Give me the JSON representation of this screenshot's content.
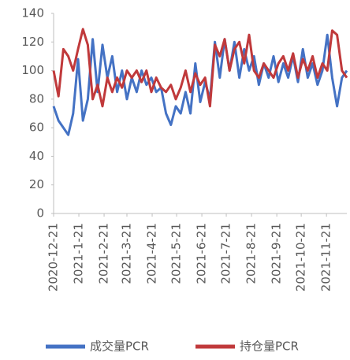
{
  "chart_data": {
    "type": "line",
    "x": [
      "2020-12-21",
      "2020-12-27",
      "2021-01-02",
      "2021-01-08",
      "2021-01-14",
      "2021-01-20",
      "2021-01-26",
      "2021-02-01",
      "2021-02-07",
      "2021-02-13",
      "2021-02-19",
      "2021-02-25",
      "2021-03-03",
      "2021-03-09",
      "2021-03-15",
      "2021-03-21",
      "2021-03-27",
      "2021-04-02",
      "2021-04-08",
      "2021-04-14",
      "2021-04-20",
      "2021-04-26",
      "2021-05-02",
      "2021-05-08",
      "2021-05-14",
      "2021-05-20",
      "2021-05-26",
      "2021-06-01",
      "2021-06-07",
      "2021-06-13",
      "2021-06-19",
      "2021-06-25",
      "2021-07-01",
      "2021-07-07",
      "2021-07-13",
      "2021-07-19",
      "2021-07-25",
      "2021-07-31",
      "2021-08-06",
      "2021-08-12",
      "2021-08-18",
      "2021-08-24",
      "2021-08-30",
      "2021-09-05",
      "2021-09-11",
      "2021-09-17",
      "2021-09-23",
      "2021-09-29",
      "2021-10-05",
      "2021-10-11",
      "2021-10-17",
      "2021-10-23",
      "2021-10-29",
      "2021-11-04",
      "2021-11-10",
      "2021-11-16",
      "2021-11-22",
      "2021-11-28",
      "2021-12-04",
      "2021-12-10",
      "2021-12-16"
    ],
    "series": [
      {
        "name": "成交量PCR",
        "color": "#4472c4",
        "values": [
          75,
          65,
          60,
          55,
          70,
          108,
          65,
          80,
          122,
          85,
          118,
          95,
          110,
          85,
          100,
          80,
          95,
          85,
          100,
          90,
          95,
          85,
          88,
          70,
          62,
          75,
          70,
          85,
          70,
          105,
          78,
          92,
          80,
          120,
          95,
          122,
          100,
          120,
          95,
          115,
          100,
          110,
          90,
          105,
          95,
          110,
          92,
          105,
          95,
          110,
          92,
          115,
          95,
          105,
          90,
          100,
          125,
          95,
          75,
          95,
          100
        ]
      },
      {
        "name": "持仓量PCR",
        "color": "#c0393b",
        "values": [
          100,
          82,
          115,
          110,
          100,
          115,
          129,
          118,
          80,
          90,
          75,
          95,
          85,
          95,
          88,
          100,
          95,
          100,
          92,
          100,
          85,
          95,
          88,
          85,
          90,
          80,
          88,
          100,
          85,
          98,
          90,
          95,
          75,
          118,
          110,
          122,
          100,
          115,
          120,
          105,
          125,
          100,
          95,
          105,
          100,
          95,
          105,
          110,
          100,
          112,
          95,
          108,
          100,
          110,
          95,
          105,
          100,
          128,
          125,
          100,
          95
        ]
      }
    ],
    "xlim": [
      "2020-12-21",
      "2021-12-16"
    ],
    "xticks": [
      "2020-12-21",
      "2021-1-21",
      "2021-2-21",
      "2021-3-21",
      "2021-4-21",
      "2021-5-21",
      "2021-6-21",
      "2021-7-21",
      "2021-8-21",
      "2021-9-21",
      "2021-10-21",
      "2021-11-21"
    ],
    "ylim": [
      0,
      140
    ],
    "yticks": [
      0,
      20,
      40,
      60,
      80,
      100,
      120,
      140
    ],
    "legend": "bottom"
  }
}
